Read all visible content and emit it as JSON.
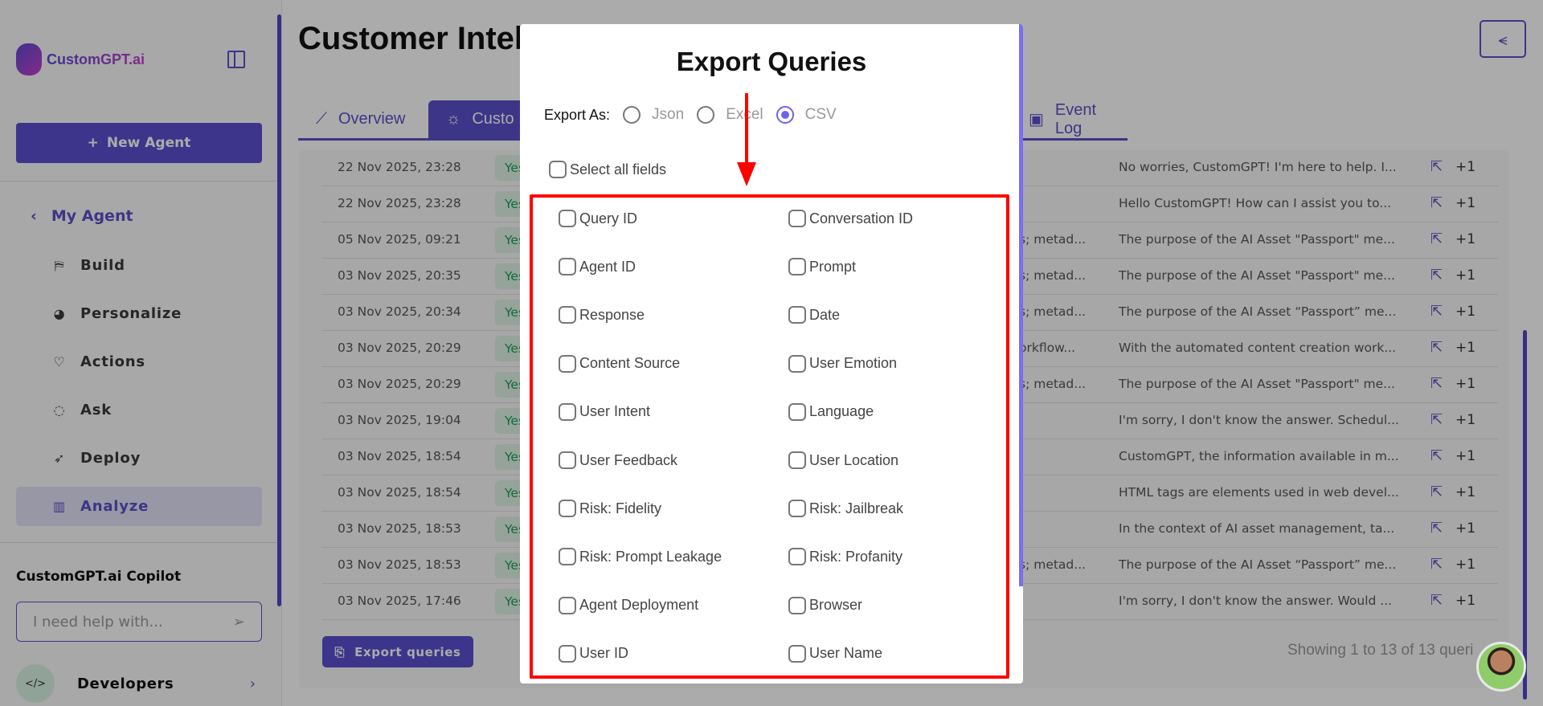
{
  "sidebar": {
    "logo_text": "CustomGPT.ai",
    "new_agent": "New Agent",
    "my_agent": "My Agent",
    "items": [
      {
        "label": "Build",
        "icon": "crane-icon"
      },
      {
        "label": "Personalize",
        "icon": "palette-icon"
      },
      {
        "label": "Actions",
        "icon": "handshake-heart-icon"
      },
      {
        "label": "Ask",
        "icon": "chat-bubble-icon"
      },
      {
        "label": "Deploy",
        "icon": "rocket-icon"
      },
      {
        "label": "Analyze",
        "icon": "bar-chart-icon",
        "active": true
      }
    ],
    "copilot_label": "CustomGPT.ai Copilot",
    "copilot_placeholder": "I need help with...",
    "developers": "Developers"
  },
  "header": {
    "title": "Customer Intell"
  },
  "tabs": [
    {
      "label": "Overview",
      "icon": "line-chart-icon"
    },
    {
      "label": "Custo",
      "icon": "lightbulb-icon",
      "active": true
    },
    {
      "label": "Event Log",
      "icon": "archive-icon"
    }
  ],
  "table": {
    "rows": [
      {
        "date": "22 Nov 2025, 23:28",
        "badge": "Yes",
        "c4": "",
        "response": "No worries, CustomGPT! I'm here to help. I...",
        "count": "+1"
      },
      {
        "date": "22 Nov 2025, 23:28",
        "badge": "Yes",
        "c4": "",
        "response": "Hello CustomGPT! How can I assist you to...",
        "count": "+1"
      },
      {
        "date": "05 Nov 2025, 09:21",
        "badge": "Yes",
        "c4": "s; metad...",
        "response": "The purpose of the AI Asset \"Passport\" me...",
        "count": "+1"
      },
      {
        "date": "03 Nov 2025, 20:35",
        "badge": "Yes",
        "c4": "s; metad...",
        "response": "The purpose of the AI Asset \"Passport\" me...",
        "count": "+1"
      },
      {
        "date": "03 Nov 2025, 20:34",
        "badge": "Yes",
        "c4": "s; metad...",
        "response": "The purpose of the AI Asset “Passport” me...",
        "count": "+1"
      },
      {
        "date": "03 Nov 2025, 20:29",
        "badge": "Yes",
        "c4": "orkflow...",
        "response": "With the automated content creation work...",
        "count": "+1"
      },
      {
        "date": "03 Nov 2025, 20:29",
        "badge": "Yes",
        "c4": "s; metad...",
        "response": "The purpose of the AI Asset \"Passport\" me...",
        "count": "+1"
      },
      {
        "date": "03 Nov 2025, 19:04",
        "badge": "Yes",
        "c4": "",
        "response": "I'm sorry, I don't know the answer. Schedul...",
        "count": "+1"
      },
      {
        "date": "03 Nov 2025, 18:54",
        "badge": "Yes",
        "c4": "",
        "response": "CustomGPT, the information available in m...",
        "count": "+1"
      },
      {
        "date": "03 Nov 2025, 18:54",
        "badge": "Yes",
        "c4": "",
        "response": "HTML tags are elements used in web devel...",
        "count": "+1"
      },
      {
        "date": "03 Nov 2025, 18:53",
        "badge": "Yes",
        "c4": "",
        "response": "In the context of AI asset management, ta...",
        "count": "+1"
      },
      {
        "date": "03 Nov 2025, 18:53",
        "badge": "Yes",
        "c4": "s; metad...",
        "response": "The purpose of the AI Asset “Passport” me...",
        "count": "+1"
      },
      {
        "date": "03 Nov 2025, 17:46",
        "badge": "Yes",
        "c4": "",
        "response": "I'm sorry, I don't know the answer. Would ...",
        "count": "+1"
      }
    ],
    "export_button": "Export queries",
    "showing": "Showing 1 to 13 of 13 queri"
  },
  "modal": {
    "title": "Export Queries",
    "export_as_label": "Export As:",
    "formats": [
      {
        "label": "Json",
        "selected": false
      },
      {
        "label": "Excel",
        "selected": false
      },
      {
        "label": "CSV",
        "selected": true
      }
    ],
    "select_all": "Select all fields",
    "fields": [
      "Query ID",
      "Conversation ID",
      "Agent ID",
      "Prompt",
      "Response",
      "Date",
      "Content Source",
      "User Emotion",
      "User Intent",
      "Language",
      "User Feedback",
      "User Location",
      "Risk: Fidelity",
      "Risk: Jailbreak",
      "Risk: Prompt Leakage",
      "Risk: Profanity",
      "Agent Deployment",
      "Browser",
      "User ID",
      "User Name"
    ]
  },
  "colors": {
    "accent": "#5b4fc9",
    "highlight": "#ff0000",
    "badge_green": "#1e9e55"
  }
}
